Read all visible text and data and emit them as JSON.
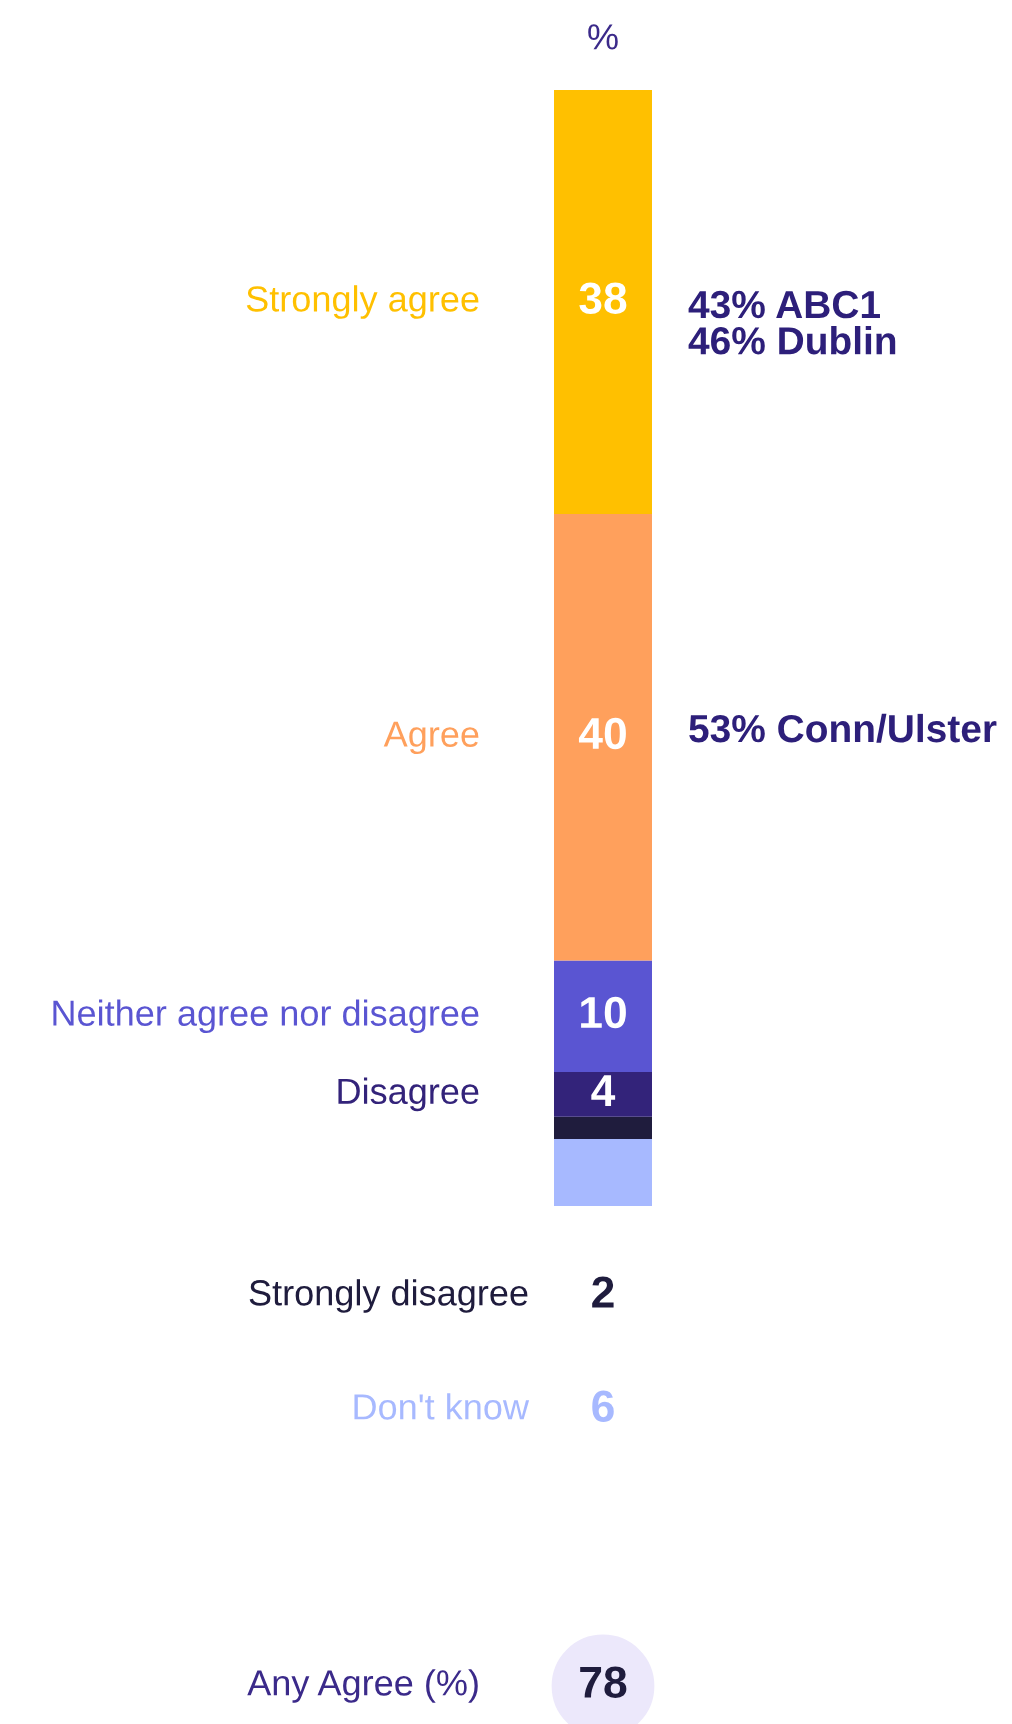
{
  "chart_data": {
    "type": "bar",
    "stacked": true,
    "title": "%",
    "categories": [
      null
    ],
    "series": [
      {
        "name": "Don't know",
        "color": "#a7b9ff",
        "values": [
          6
        ],
        "value_labels": [
          null
        ]
      },
      {
        "name": "Strongly disagree",
        "color": "#1f1c3d",
        "values": [
          2
        ],
        "value_labels": [
          null
        ]
      },
      {
        "name": "Disagree",
        "color": "#33237a",
        "values": [
          4
        ],
        "value_labels": [
          "4"
        ]
      },
      {
        "name": "Neither agree nor disagree",
        "color": "#5a55d2",
        "values": [
          10
        ],
        "value_labels": [
          "10"
        ]
      },
      {
        "name": "Agree",
        "color": "#ffa05c",
        "values": [
          40
        ],
        "value_labels": [
          "40"
        ]
      },
      {
        "name": "Strongly agree",
        "color": "#ffc000",
        "values": [
          38
        ],
        "value_labels": [
          "38"
        ]
      }
    ],
    "ylim": [
      0,
      100
    ],
    "annotations": [
      "43% ABC1\n46% Dublin",
      "53% Conn/Ulster",
      "2",
      "6",
      "Any Agree (%)",
      "78"
    ]
  }
}
